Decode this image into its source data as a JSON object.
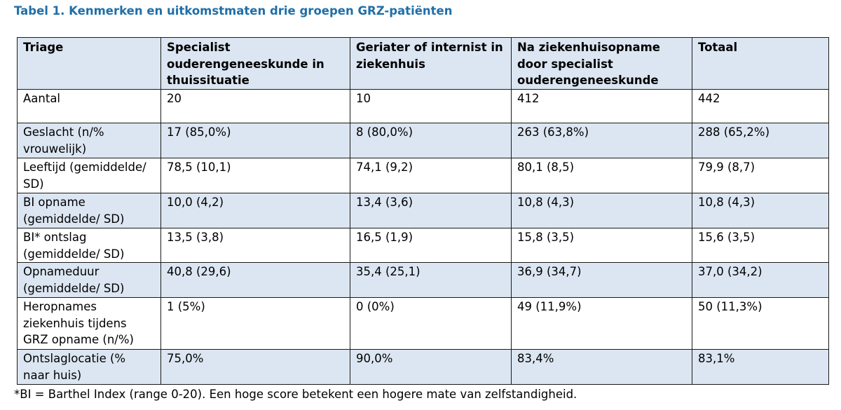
{
  "caption": "Tabel 1. Kenmerken en uitkomstmaten drie groepen GRZ-patiënten",
  "table": {
    "headers": [
      "Triage",
      "Specialist ouderengeneeskunde in thuissituatie",
      "Geriater of internist in ziekenhuis",
      "Na ziekenhuisopname door specialist ouderengeneeskunde",
      "Totaal"
    ],
    "rows": [
      [
        "Aantal",
        "20",
        "10",
        "412",
        "442"
      ],
      [
        "Geslacht (n/% vrouwelijk)",
        "17 (85,0%)",
        "8 (80,0%)",
        "263 (63,8%)",
        "288 (65,2%)"
      ],
      [
        "Leeftijd (gemiddelde/ SD)",
        "78,5 (10,1)",
        "74,1 (9,2)",
        "80,1 (8,5)",
        "79,9 (8,7)"
      ],
      [
        "BI opname (gemiddelde/ SD)",
        "10,0 (4,2)",
        "13,4 (3,6)",
        "10,8 (4,3)",
        "10,8 (4,3)"
      ],
      [
        "BI* ontslag (gemiddelde/ SD)",
        "13,5 (3,8)",
        "16,5 (1,9)",
        "15,8 (3,5)",
        "15,6 (3,5)"
      ],
      [
        "Opnameduur (gemiddelde/ SD)",
        "40,8 (29,6)",
        "35,4 (25,1)",
        "36,9 (34,7)",
        "37,0 (34,2)"
      ],
      [
        "Heropnames ziekenhuis tijdens GRZ opname (n/%)",
        "1 (5%)",
        "0 (0%)",
        "49 (11,9%)",
        "50 (11,3%)"
      ],
      [
        "Ontslaglocatie (% naar huis)",
        "75,0%",
        "90,0%",
        "83,4%",
        "83,1%"
      ]
    ]
  },
  "footnote": "*BI = Barthel Index (range 0-20). Een hoge score betekent een hogere mate van zelfstandigheid.",
  "colors": {
    "caption": "#1f6fa8",
    "shaded_row": "#dce6f2",
    "border": "#1a1a1a"
  }
}
